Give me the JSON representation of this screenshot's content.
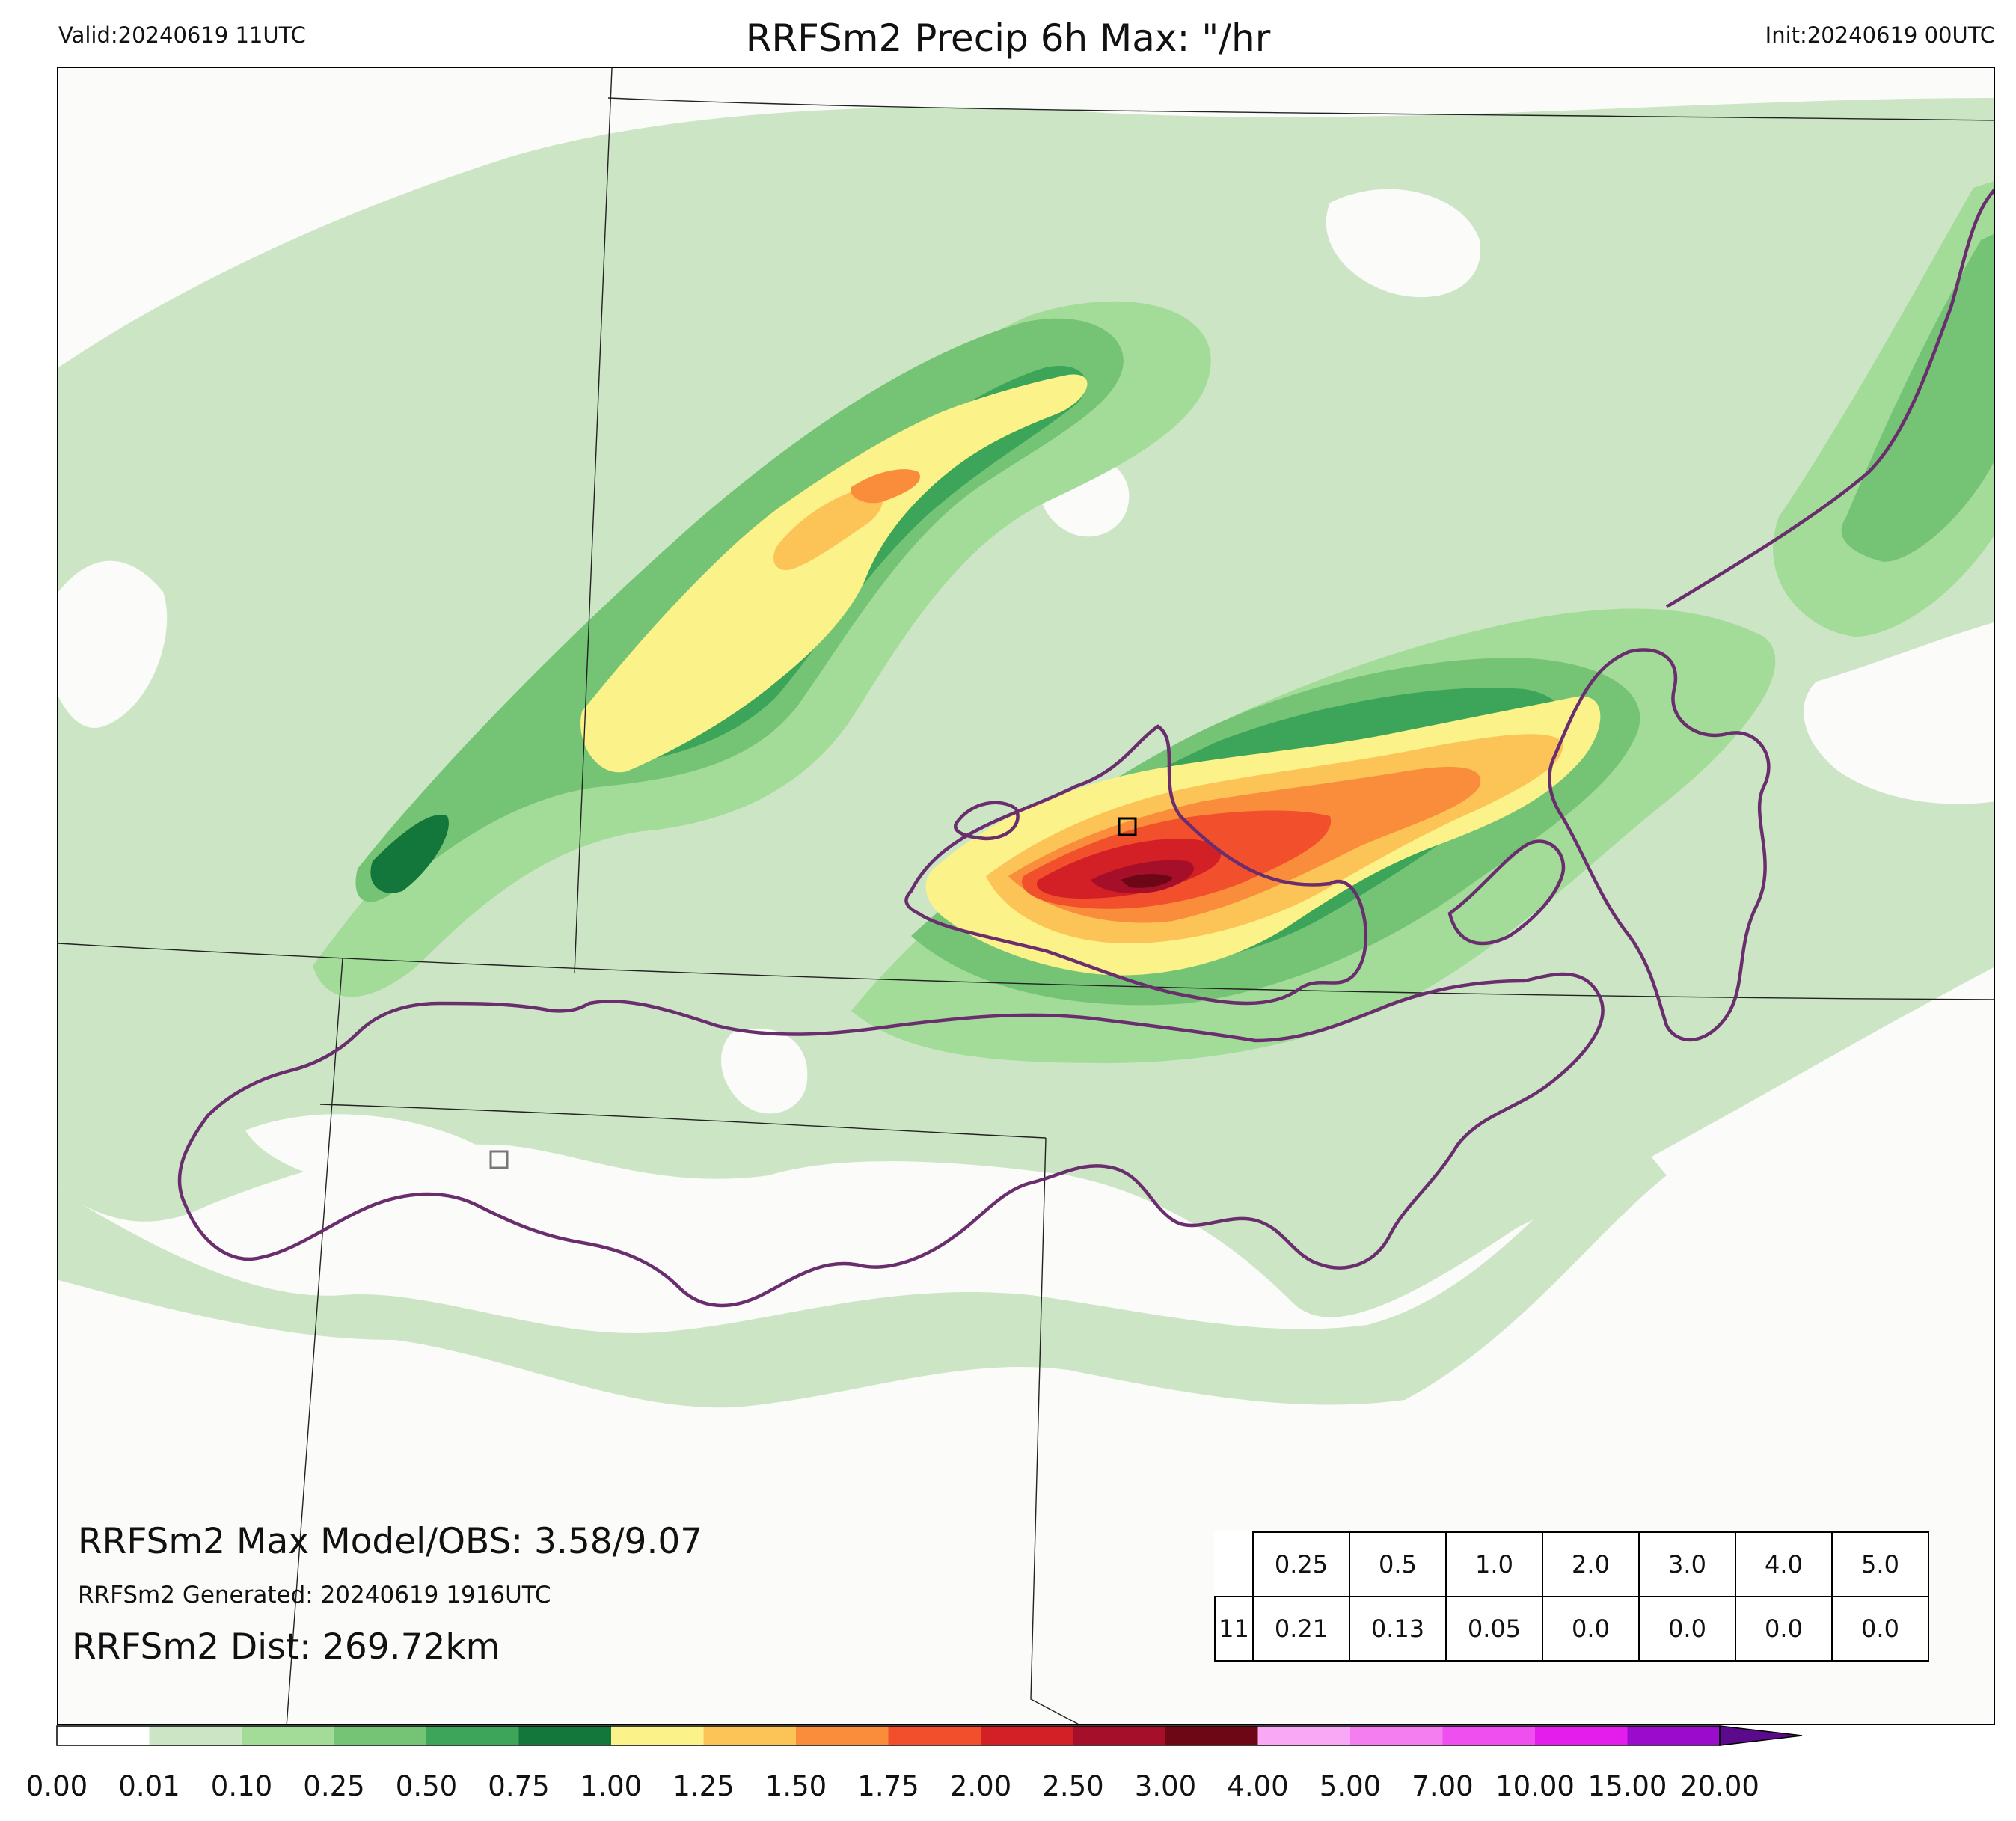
{
  "header": {
    "valid": "Valid:20240619 11UTC",
    "title": "RRFSm2 Precip 6h Max: \"/hr",
    "init": "Init:20240619 00UTC"
  },
  "annotations": {
    "max": "RRFSm2 Max Model/OBS: 3.58/9.07",
    "generated": "RRFSm2 Generated: 20240619 1916UTC",
    "distance": "RRFSm2 Dist: 269.72km"
  },
  "stats_table": {
    "thresholds": [
      "0.25",
      "0.5",
      "1.0",
      "2.0",
      "3.0",
      "4.0",
      "5.0"
    ],
    "row_label": "11",
    "values": [
      "0.21",
      "0.13",
      "0.05",
      "0.0",
      "0.0",
      "0.0",
      "0.0"
    ]
  },
  "colorbar": {
    "ticks": [
      "0.00",
      "0.01",
      "0.10",
      "0.25",
      "0.50",
      "0.75",
      "1.00",
      "1.25",
      "1.50",
      "1.75",
      "2.00",
      "2.50",
      "3.00",
      "4.00",
      "5.00",
      "7.00",
      "10.00",
      "15.00",
      "20.00"
    ],
    "colors": [
      "#ffffff",
      "#cce6c5",
      "#a3dc98",
      "#75c475",
      "#3da55a",
      "#13763a",
      "#fbf28a",
      "#fcc457",
      "#f98d3b",
      "#f24f2c",
      "#d31f26",
      "#a60f2a",
      "#6e0715",
      "#f8a8f4",
      "#f47df0",
      "#ef4fee",
      "#e41cec",
      "#9a0bcc"
    ],
    "extend_color": "#5a0a8a"
  }
}
